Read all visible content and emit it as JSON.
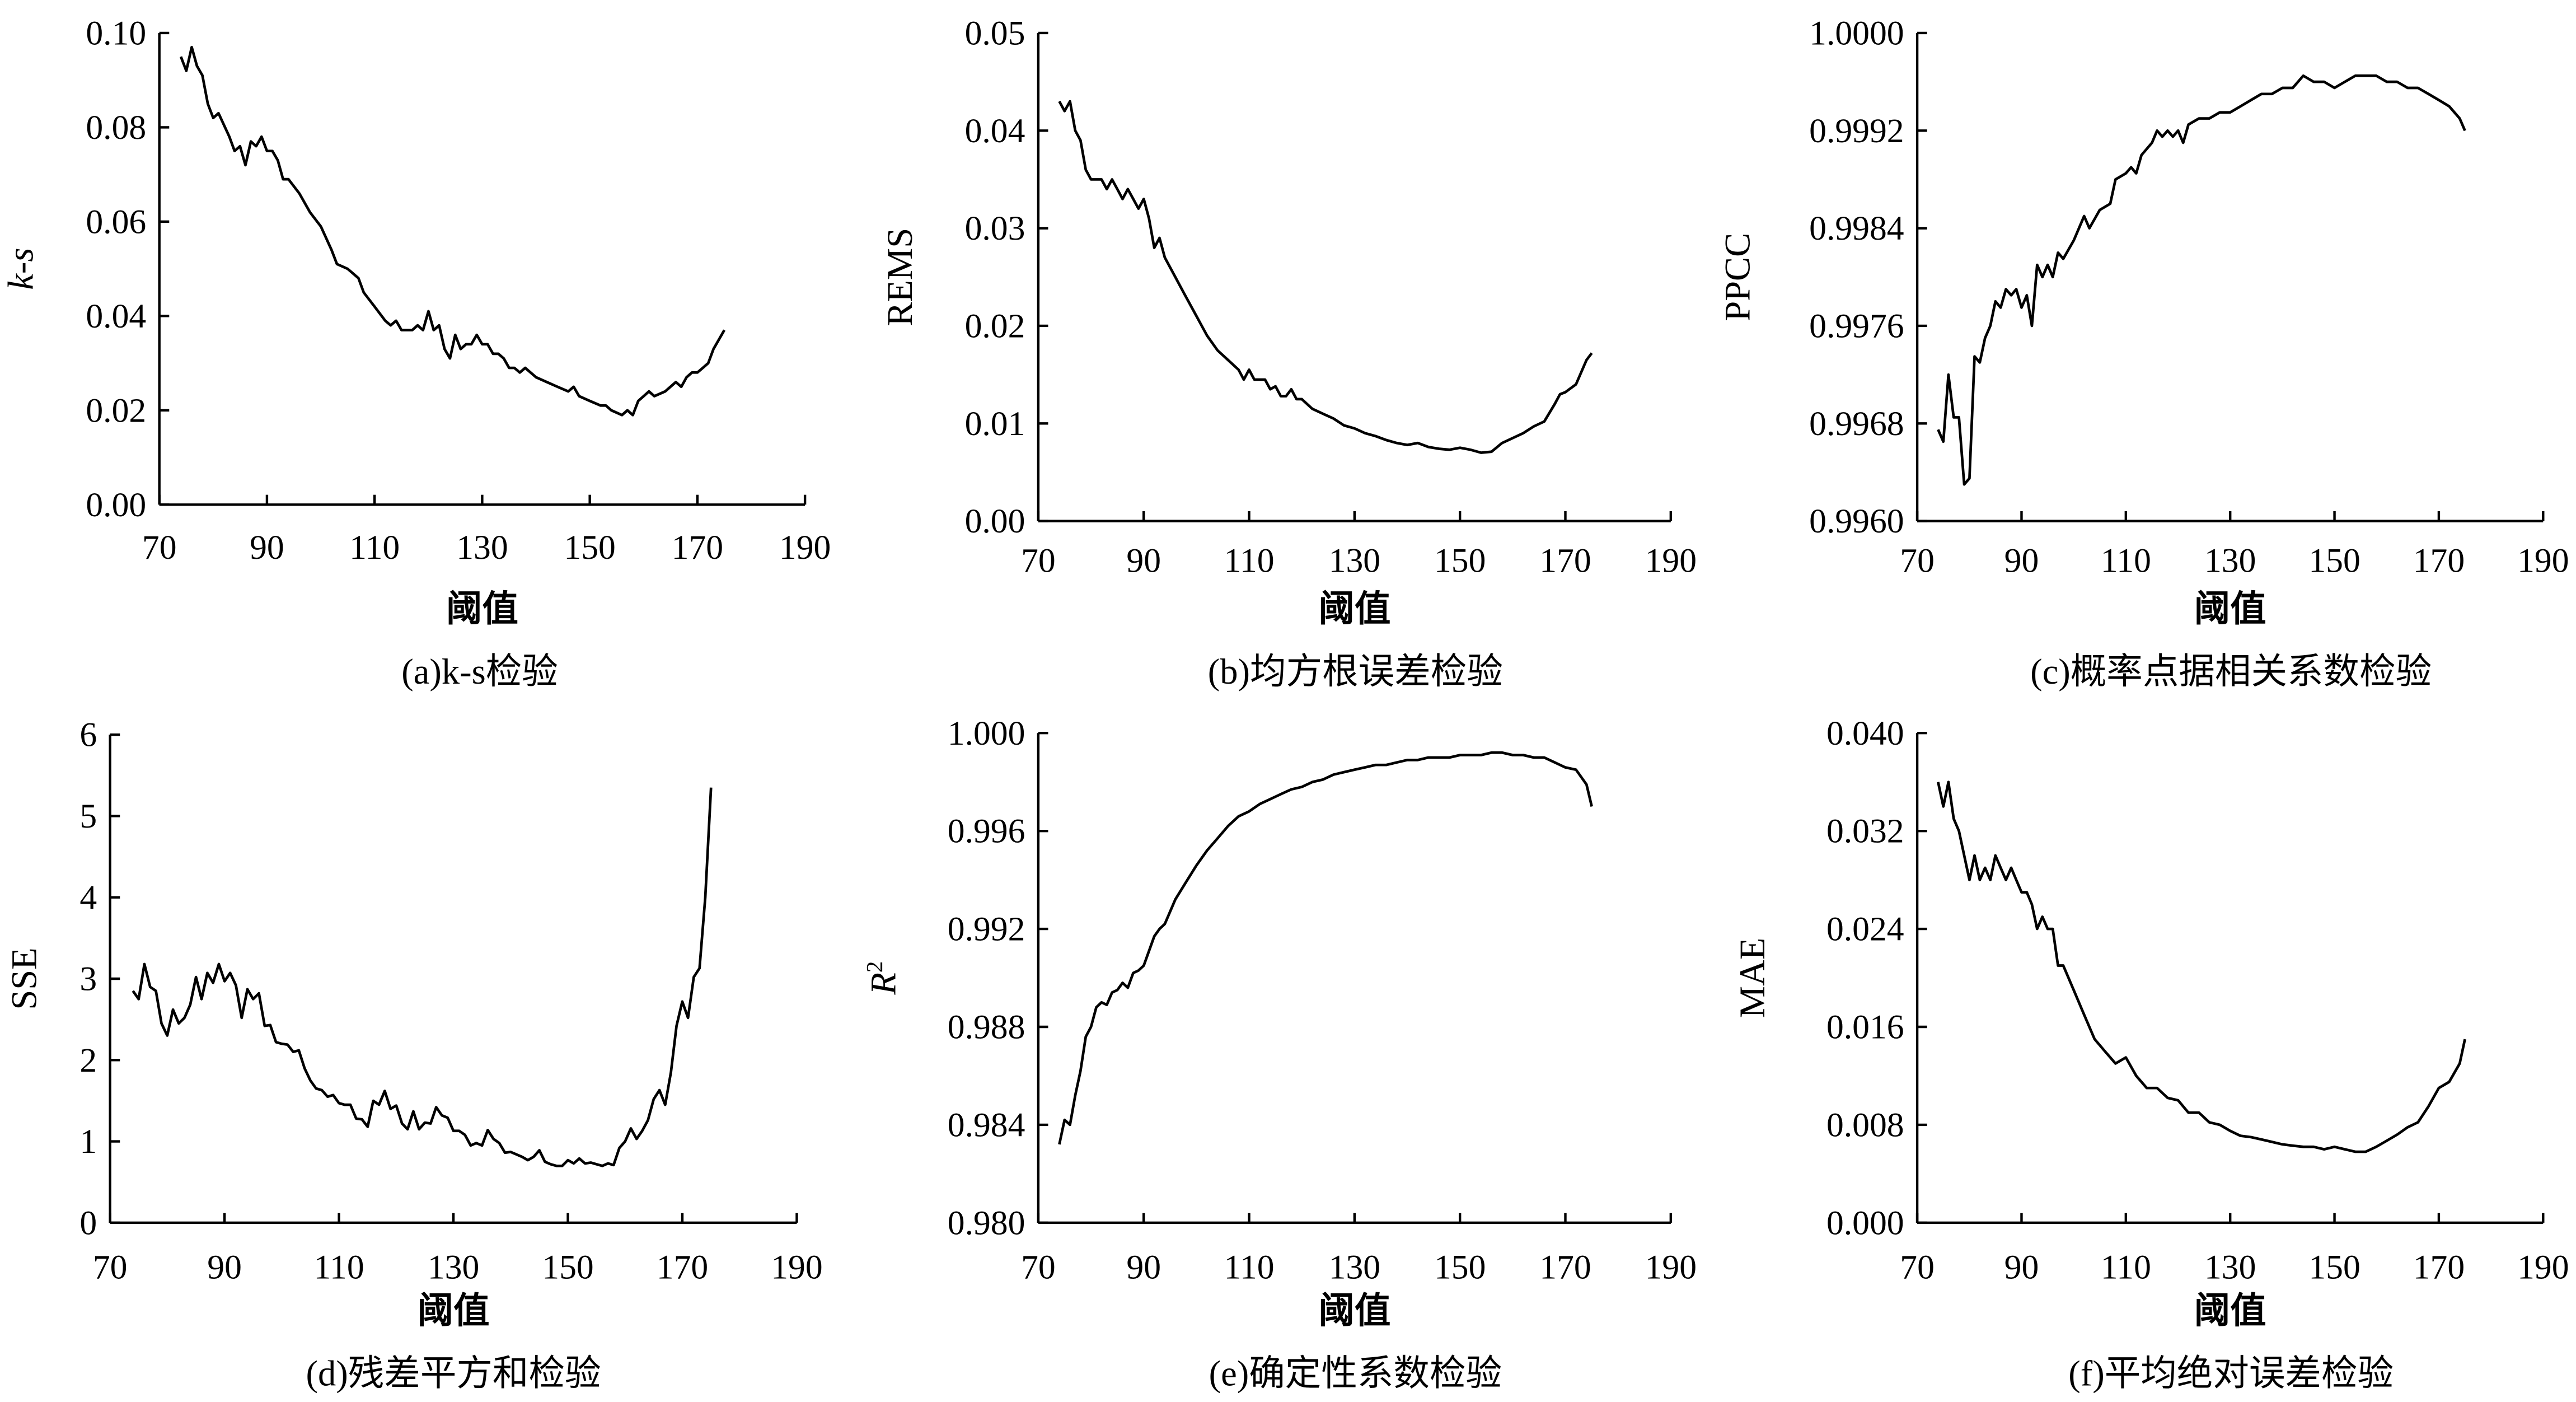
{
  "chart_data": [
    {
      "type": "line",
      "panel": "a",
      "caption": "(a)k-s检验",
      "xlabel": "阈值",
      "ylabel": "k-s",
      "ylabel_italic": true,
      "xlim": [
        70,
        190
      ],
      "ylim": [
        0,
        0.1
      ],
      "xticks": [
        "70",
        "90",
        "110",
        "130",
        "150",
        "170",
        "190"
      ],
      "yticks": [
        "0.00",
        "0.02",
        "0.04",
        "0.06",
        "0.08",
        "0.10"
      ],
      "x": [
        74,
        75,
        76,
        77,
        78,
        79,
        80,
        81,
        83,
        84,
        85,
        86,
        87,
        88,
        89,
        90,
        91,
        92,
        93,
        94,
        96,
        98,
        100,
        102,
        103,
        105,
        107,
        108,
        110,
        112,
        113,
        114,
        115,
        117,
        118,
        119,
        120,
        121,
        122,
        123,
        124,
        125,
        126,
        127,
        128,
        129,
        130,
        131,
        132,
        133,
        134,
        135,
        136,
        137,
        138,
        140,
        142,
        144,
        146,
        147,
        148,
        150,
        152,
        153,
        154,
        156,
        157,
        158,
        159,
        160,
        161,
        162,
        164,
        166,
        167,
        168,
        169,
        170,
        171,
        172,
        173,
        175
      ],
      "y": [
        0.095,
        0.092,
        0.097,
        0.093,
        0.091,
        0.085,
        0.082,
        0.083,
        0.078,
        0.075,
        0.076,
        0.072,
        0.077,
        0.076,
        0.078,
        0.075,
        0.075,
        0.073,
        0.069,
        0.069,
        0.066,
        0.062,
        0.059,
        0.054,
        0.051,
        0.05,
        0.048,
        0.045,
        0.042,
        0.039,
        0.038,
        0.039,
        0.037,
        0.037,
        0.038,
        0.037,
        0.041,
        0.037,
        0.038,
        0.033,
        0.031,
        0.036,
        0.033,
        0.034,
        0.034,
        0.036,
        0.034,
        0.034,
        0.032,
        0.032,
        0.031,
        0.029,
        0.029,
        0.028,
        0.029,
        0.027,
        0.026,
        0.025,
        0.024,
        0.025,
        0.023,
        0.022,
        0.021,
        0.021,
        0.02,
        0.019,
        0.02,
        0.019,
        0.022,
        0.023,
        0.024,
        0.023,
        0.024,
        0.026,
        0.025,
        0.027,
        0.028,
        0.028,
        0.029,
        0.03,
        0.033,
        0.037
      ]
    },
    {
      "type": "line",
      "panel": "b",
      "caption": "(b)均方根误差检验",
      "xlabel": "阈值",
      "ylabel": "REMS",
      "ylabel_italic": false,
      "xlim": [
        70,
        190
      ],
      "ylim": [
        0,
        0.05
      ],
      "xticks": [
        "70",
        "90",
        "110",
        "130",
        "150",
        "170",
        "190"
      ],
      "yticks": [
        "0.00",
        "0.01",
        "0.02",
        "0.03",
        "0.04",
        "0.05"
      ],
      "x": [
        74,
        75,
        76,
        77,
        78,
        79,
        80,
        82,
        83,
        84,
        85,
        86,
        87,
        88,
        89,
        90,
        91,
        92,
        93,
        94,
        96,
        98,
        100,
        102,
        104,
        106,
        108,
        109,
        110,
        111,
        113,
        114,
        115,
        116,
        117,
        118,
        119,
        120,
        122,
        124,
        126,
        128,
        130,
        132,
        134,
        136,
        138,
        140,
        142,
        144,
        146,
        148,
        150,
        152,
        154,
        156,
        158,
        160,
        162,
        164,
        166,
        168,
        169,
        170,
        172,
        174,
        175
      ],
      "y": [
        0.043,
        0.042,
        0.043,
        0.04,
        0.039,
        0.036,
        0.035,
        0.035,
        0.034,
        0.035,
        0.034,
        0.033,
        0.034,
        0.033,
        0.032,
        0.033,
        0.031,
        0.028,
        0.029,
        0.027,
        0.025,
        0.023,
        0.021,
        0.019,
        0.0175,
        0.0165,
        0.0155,
        0.0145,
        0.0155,
        0.0145,
        0.0145,
        0.0135,
        0.0138,
        0.0128,
        0.0128,
        0.0135,
        0.0125,
        0.0125,
        0.0115,
        0.011,
        0.0105,
        0.0098,
        0.0095,
        0.009,
        0.0087,
        0.0083,
        0.008,
        0.0078,
        0.008,
        0.0076,
        0.0074,
        0.0073,
        0.0075,
        0.0073,
        0.007,
        0.0071,
        0.008,
        0.0085,
        0.009,
        0.0097,
        0.0102,
        0.012,
        0.013,
        0.0132,
        0.014,
        0.0165,
        0.0172
      ]
    },
    {
      "type": "line",
      "panel": "c",
      "caption": "(c)概率点据相关系数检验",
      "xlabel": "阈值",
      "ylabel": "PPCC",
      "ylabel_italic": false,
      "xlim": [
        70,
        190
      ],
      "ylim": [
        0.996,
        1.0
      ],
      "xticks": [
        "70",
        "90",
        "110",
        "130",
        "150",
        "170",
        "190"
      ],
      "yticks": [
        "0.9960",
        "0.9968",
        "0.9976",
        "0.9984",
        "0.9992",
        "1.0000"
      ],
      "x": [
        74,
        75,
        76,
        77,
        78,
        79,
        80,
        81,
        82,
        83,
        84,
        85,
        86,
        87,
        88,
        89,
        90,
        91,
        92,
        93,
        94,
        95,
        96,
        97,
        98,
        100,
        102,
        103,
        105,
        107,
        108,
        110,
        111,
        112,
        113,
        115,
        116,
        117,
        118,
        119,
        120,
        121,
        122,
        124,
        126,
        128,
        130,
        132,
        134,
        136,
        138,
        140,
        142,
        144,
        146,
        148,
        150,
        152,
        154,
        156,
        158,
        160,
        162,
        164,
        166,
        168,
        170,
        172,
        174,
        175
      ],
      "y": [
        0.99675,
        0.99665,
        0.9972,
        0.99685,
        0.99685,
        0.9963,
        0.99635,
        0.99735,
        0.9973,
        0.9975,
        0.9976,
        0.9978,
        0.99775,
        0.9979,
        0.99785,
        0.9979,
        0.99775,
        0.99785,
        0.9976,
        0.9981,
        0.998,
        0.9981,
        0.998,
        0.9982,
        0.99815,
        0.9983,
        0.9985,
        0.9984,
        0.99855,
        0.9986,
        0.9988,
        0.99885,
        0.9989,
        0.99885,
        0.999,
        0.9991,
        0.9992,
        0.99915,
        0.9992,
        0.99915,
        0.9992,
        0.9991,
        0.99925,
        0.9993,
        0.9993,
        0.99935,
        0.99935,
        0.9994,
        0.99945,
        0.9995,
        0.9995,
        0.99955,
        0.99955,
        0.99965,
        0.9996,
        0.9996,
        0.99955,
        0.9996,
        0.99965,
        0.99965,
        0.99965,
        0.9996,
        0.9996,
        0.99955,
        0.99955,
        0.9995,
        0.99945,
        0.9994,
        0.9993,
        0.9992
      ]
    },
    {
      "type": "line",
      "panel": "d",
      "caption": "(d)残差平方和检验",
      "xlabel": "阈值",
      "ylabel": "SSE",
      "ylabel_italic": false,
      "xlim": [
        70,
        190
      ],
      "ylim": [
        0,
        6
      ],
      "xticks": [
        "70",
        "90",
        "110",
        "130",
        "150",
        "170",
        "190"
      ],
      "yticks": [
        "0",
        "1",
        "2",
        "3",
        "4",
        "5",
        "6"
      ],
      "x": [
        74,
        75,
        76,
        77,
        78,
        79,
        80,
        81,
        82,
        83,
        84,
        85,
        86,
        87,
        88,
        89,
        90,
        91,
        92,
        93,
        94,
        95,
        96,
        97,
        98,
        99,
        100,
        101,
        102,
        103,
        104,
        105,
        106,
        107,
        108,
        109,
        110,
        111,
        112,
        113,
        114,
        115,
        116,
        117,
        118,
        119,
        120,
        121,
        122,
        123,
        124,
        125,
        126,
        127,
        128,
        129,
        130,
        131,
        132,
        133,
        134,
        135,
        136,
        137,
        138,
        139,
        140,
        141,
        142,
        143,
        144,
        145,
        146,
        147,
        148,
        149,
        150,
        151,
        152,
        153,
        154,
        155,
        156,
        157,
        158,
        159,
        160,
        161,
        162,
        163,
        164,
        165,
        166,
        167,
        168,
        169,
        170,
        171,
        172,
        173,
        174,
        175
      ],
      "y": [
        2.85,
        2.75,
        3.18,
        2.9,
        2.85,
        2.45,
        2.3,
        2.62,
        2.45,
        2.52,
        2.68,
        3.02,
        2.75,
        3.07,
        2.95,
        3.18,
        2.97,
        3.07,
        2.92,
        2.52,
        2.87,
        2.75,
        2.82,
        2.42,
        2.43,
        2.22,
        2.2,
        2.19,
        2.1,
        2.12,
        1.9,
        1.75,
        1.65,
        1.63,
        1.55,
        1.57,
        1.47,
        1.45,
        1.45,
        1.28,
        1.27,
        1.18,
        1.5,
        1.45,
        1.62,
        1.4,
        1.44,
        1.22,
        1.15,
        1.37,
        1.15,
        1.23,
        1.22,
        1.42,
        1.32,
        1.29,
        1.13,
        1.13,
        1.08,
        0.95,
        0.98,
        0.95,
        1.14,
        1.03,
        0.98,
        0.86,
        0.87,
        0.84,
        0.81,
        0.77,
        0.81,
        0.89,
        0.75,
        0.72,
        0.7,
        0.7,
        0.77,
        0.73,
        0.79,
        0.73,
        0.74,
        0.72,
        0.7,
        0.73,
        0.71,
        0.92,
        1.0,
        1.16,
        1.03,
        1.13,
        1.26,
        1.52,
        1.63,
        1.45,
        1.85,
        2.42,
        2.72,
        2.52,
        3.02,
        3.13,
        4.0,
        5.35
      ]
    },
    {
      "type": "line",
      "panel": "e",
      "caption": "(e)确定性系数检验",
      "xlabel": "阈值",
      "ylabel": "R2",
      "ylabel_italic": true,
      "xlim": [
        70,
        190
      ],
      "ylim": [
        0.98,
        1.0
      ],
      "xticks": [
        "70",
        "90",
        "110",
        "130",
        "150",
        "170",
        "190"
      ],
      "yticks": [
        "0.980",
        "0.984",
        "0.988",
        "0.992",
        "0.996",
        "1.000"
      ],
      "x": [
        74,
        75,
        76,
        77,
        78,
        79,
        80,
        81,
        82,
        83,
        84,
        85,
        86,
        87,
        88,
        89,
        90,
        91,
        92,
        93,
        94,
        96,
        98,
        100,
        102,
        104,
        106,
        108,
        110,
        112,
        114,
        116,
        118,
        120,
        122,
        124,
        126,
        128,
        130,
        132,
        134,
        136,
        138,
        140,
        142,
        144,
        146,
        148,
        150,
        152,
        154,
        156,
        158,
        160,
        162,
        164,
        166,
        168,
        170,
        172,
        174,
        175
      ],
      "y": [
        0.9832,
        0.9842,
        0.984,
        0.9852,
        0.9862,
        0.9876,
        0.988,
        0.9888,
        0.989,
        0.9889,
        0.9894,
        0.9895,
        0.9898,
        0.9896,
        0.9902,
        0.9903,
        0.9905,
        0.9911,
        0.9917,
        0.992,
        0.9922,
        0.9932,
        0.9939,
        0.9946,
        0.9952,
        0.9957,
        0.9962,
        0.9966,
        0.9968,
        0.9971,
        0.9973,
        0.9975,
        0.9977,
        0.9978,
        0.998,
        0.9981,
        0.9983,
        0.9984,
        0.9985,
        0.9986,
        0.9987,
        0.9987,
        0.9988,
        0.9989,
        0.9989,
        0.999,
        0.999,
        0.999,
        0.9991,
        0.9991,
        0.9991,
        0.9992,
        0.9992,
        0.9991,
        0.9991,
        0.999,
        0.999,
        0.9988,
        0.9986,
        0.9985,
        0.9979,
        0.997
      ]
    },
    {
      "type": "line",
      "panel": "f",
      "caption": "(f)平均绝对误差检验",
      "xlabel": "阈值",
      "ylabel": "MAE",
      "ylabel_italic": false,
      "xlim": [
        70,
        190
      ],
      "ylim": [
        0,
        0.04
      ],
      "xticks": [
        "70",
        "90",
        "110",
        "130",
        "150",
        "170",
        "190"
      ],
      "yticks": [
        "0.000",
        "0.008",
        "0.016",
        "0.024",
        "0.032",
        "0.040"
      ],
      "x": [
        74,
        75,
        76,
        77,
        78,
        79,
        80,
        81,
        82,
        83,
        84,
        85,
        86,
        87,
        88,
        89,
        90,
        91,
        92,
        93,
        94,
        95,
        96,
        97,
        98,
        100,
        102,
        104,
        106,
        108,
        110,
        112,
        114,
        116,
        118,
        120,
        122,
        124,
        126,
        128,
        130,
        132,
        134,
        136,
        138,
        140,
        142,
        144,
        146,
        148,
        150,
        152,
        154,
        156,
        158,
        160,
        162,
        164,
        166,
        168,
        170,
        172,
        174,
        175
      ],
      "y": [
        0.036,
        0.034,
        0.036,
        0.033,
        0.032,
        0.03,
        0.028,
        0.03,
        0.028,
        0.029,
        0.028,
        0.03,
        0.029,
        0.028,
        0.029,
        0.028,
        0.027,
        0.027,
        0.026,
        0.024,
        0.025,
        0.024,
        0.024,
        0.021,
        0.021,
        0.019,
        0.017,
        0.015,
        0.014,
        0.013,
        0.0135,
        0.012,
        0.011,
        0.011,
        0.0102,
        0.01,
        0.009,
        0.009,
        0.0082,
        0.008,
        0.0075,
        0.0071,
        0.007,
        0.0068,
        0.0066,
        0.0064,
        0.0063,
        0.0062,
        0.0062,
        0.006,
        0.0062,
        0.006,
        0.0058,
        0.0058,
        0.0062,
        0.0067,
        0.0072,
        0.0078,
        0.0082,
        0.0095,
        0.011,
        0.0115,
        0.013,
        0.015
      ]
    }
  ]
}
